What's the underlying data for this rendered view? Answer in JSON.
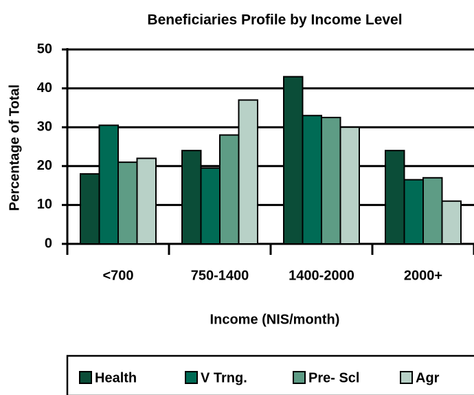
{
  "chart_data": {
    "type": "bar",
    "title": "Beneficiaries Profile by Income Level",
    "x_label": "Income (NIS/month)",
    "y_label": "Percentage of Total",
    "categories": [
      "<700",
      "750-1400",
      "1400-2000",
      "2000+"
    ],
    "series": [
      {
        "name": "Health",
        "color": "#0b4d38",
        "values": [
          18,
          24,
          43,
          24
        ]
      },
      {
        "name": "V Trng.",
        "color": "#006b55",
        "values": [
          30.5,
          19.5,
          33,
          16.5
        ]
      },
      {
        "name": "Pre- Scl",
        "color": "#5e9c85",
        "values": [
          21,
          28,
          32.5,
          17
        ]
      },
      {
        "name": "Agr",
        "color": "#b8d1c7",
        "values": [
          22,
          37,
          30,
          11
        ]
      }
    ],
    "ylim": [
      0,
      50
    ],
    "yticks": [
      0,
      10,
      20,
      30,
      40,
      50
    ],
    "grid": true,
    "legend": "bottom"
  }
}
